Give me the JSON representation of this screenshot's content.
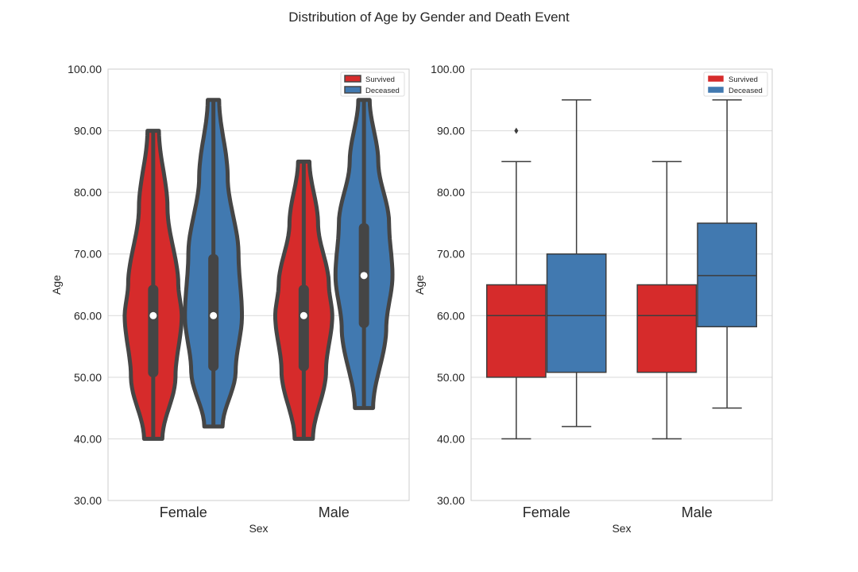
{
  "title": "Distribution of Age by Gender and Death Event",
  "colors": {
    "survived": "#d62b2b",
    "deceased": "#4179b0",
    "violin_edge": "#454545",
    "box_edge": "#3d3d3d",
    "grid": "#d9d9d9",
    "spine": "#cccccc"
  },
  "chart_data": [
    {
      "type": "violin",
      "xlabel": "Sex",
      "ylabel": "Age",
      "ylim": [
        30,
        100
      ],
      "yticks": [
        "30.00",
        "40.00",
        "50.00",
        "60.00",
        "70.00",
        "80.00",
        "90.00",
        "100.00"
      ],
      "categories": [
        "Female",
        "Male"
      ],
      "grid": true,
      "legend": {
        "position": "top-right",
        "entries": [
          "Survived",
          "Deceased"
        ]
      },
      "series": [
        {
          "name": "Survived",
          "groups": [
            {
              "category": "Female",
              "min": 40,
              "q1": 50,
              "median": 60,
              "q3": 65,
              "max": 90
            },
            {
              "category": "Male",
              "min": 40,
              "q1": 51,
              "median": 60,
              "q3": 65,
              "max": 85
            }
          ]
        },
        {
          "name": "Deceased",
          "groups": [
            {
              "category": "Female",
              "min": 42,
              "q1": 51,
              "median": 60,
              "q3": 70,
              "max": 95
            },
            {
              "category": "Male",
              "min": 45,
              "q1": 58,
              "median": 66.5,
              "q3": 75,
              "max": 95
            }
          ]
        }
      ]
    },
    {
      "type": "box",
      "xlabel": "Sex",
      "ylabel": "Age",
      "ylim": [
        30,
        100
      ],
      "yticks": [
        "30.00",
        "40.00",
        "50.00",
        "60.00",
        "70.00",
        "80.00",
        "90.00",
        "100.00"
      ],
      "categories": [
        "Female",
        "Male"
      ],
      "grid": true,
      "legend": {
        "position": "top-right",
        "entries": [
          "Survived",
          "Deceased"
        ]
      },
      "series": [
        {
          "name": "Survived",
          "groups": [
            {
              "category": "Female",
              "whisker_low": 40,
              "q1": 50,
              "median": 60,
              "q3": 65,
              "whisker_high": 85,
              "outliers": [
                90
              ]
            },
            {
              "category": "Male",
              "whisker_low": 40,
              "q1": 50.8,
              "median": 60,
              "q3": 65,
              "whisker_high": 85,
              "outliers": []
            }
          ]
        },
        {
          "name": "Deceased",
          "groups": [
            {
              "category": "Female",
              "whisker_low": 42,
              "q1": 50.8,
              "median": 60,
              "q3": 70,
              "whisker_high": 95,
              "outliers": []
            },
            {
              "category": "Male",
              "whisker_low": 45,
              "q1": 58.2,
              "median": 66.5,
              "q3": 75,
              "whisker_high": 95,
              "outliers": []
            }
          ]
        }
      ]
    }
  ]
}
